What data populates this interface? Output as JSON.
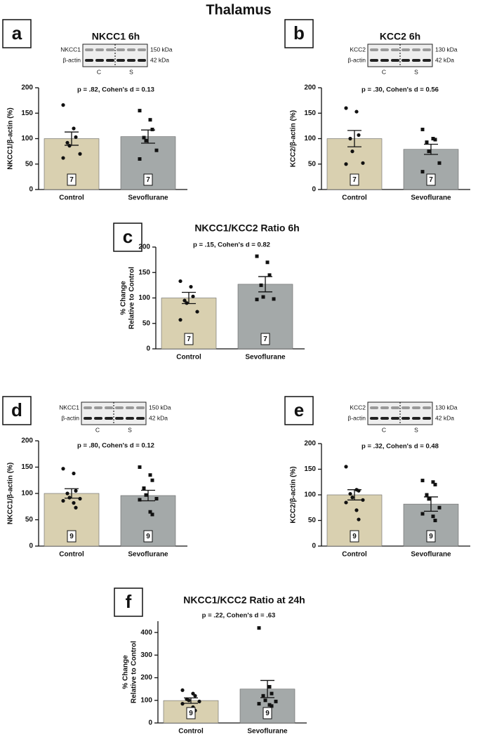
{
  "title": "Thalamus",
  "chart_data": [
    {
      "type": "bar",
      "panel": "a",
      "title": "NKCC1 6h",
      "blot": {
        "labels": [
          "NKCC1",
          "β-actin"
        ],
        "sizes": [
          "150 kDa",
          "42 kDa"
        ],
        "lanes": [
          "C",
          "S"
        ]
      },
      "stats": "p = .82, Cohen's d = 0.13",
      "ylabel": [
        "NKCC1/β-actin (%)"
      ],
      "categories": [
        "Control",
        "Sevoflurane"
      ],
      "colors": [
        "#d9d0b0",
        "#a4a9a9"
      ],
      "values": [
        100,
        104
      ],
      "errors": [
        13,
        13
      ],
      "n_labels": [
        "7",
        "7"
      ],
      "points": [
        [
          166,
          120,
          103,
          92,
          86,
          70,
          62
        ],
        [
          155,
          137,
          118,
          102,
          96,
          77,
          60
        ]
      ],
      "ylim": [
        0,
        200
      ],
      "yticks": [
        0,
        50,
        100,
        150,
        200
      ]
    },
    {
      "type": "bar",
      "panel": "b",
      "title": "KCC2 6h",
      "blot": {
        "labels": [
          "KCC2",
          "β-actin"
        ],
        "sizes": [
          "130 kDa",
          "42 kDa"
        ],
        "lanes": [
          "C",
          "S"
        ]
      },
      "stats": "p = .30, Cohen's d = 0.56",
      "ylabel": [
        "KCC2/β-actin (%)"
      ],
      "categories": [
        "Control",
        "Sevoflurane"
      ],
      "colors": [
        "#d9d0b0",
        "#a4a9a9"
      ],
      "values": [
        100,
        79
      ],
      "errors": [
        16,
        10
      ],
      "n_labels": [
        "7",
        "7"
      ],
      "points": [
        [
          160,
          153,
          107,
          100,
          75,
          52,
          50
        ],
        [
          118,
          100,
          98,
          93,
          75,
          52,
          35
        ]
      ],
      "ylim": [
        0,
        200
      ],
      "yticks": [
        0,
        50,
        100,
        150,
        200
      ]
    },
    {
      "type": "bar",
      "panel": "c",
      "title": "NKCC1/KCC2 Ratio 6h",
      "stats": "p = .15, Cohen's d = 0.82",
      "ylabel": [
        "% Change",
        "Relative to Control"
      ],
      "categories": [
        "Control",
        "Sevoflurane"
      ],
      "colors": [
        "#d9d0b0",
        "#a4a9a9"
      ],
      "values": [
        100,
        127
      ],
      "errors": [
        11,
        15
      ],
      "n_labels": [
        "7",
        "7"
      ],
      "points": [
        [
          133,
          122,
          103,
          95,
          90,
          73,
          57
        ],
        [
          182,
          170,
          145,
          125,
          102,
          98,
          97
        ]
      ],
      "ylim": [
        0,
        200
      ],
      "yticks": [
        0,
        50,
        100,
        150,
        200
      ]
    },
    {
      "type": "bar",
      "panel": "d",
      "title": "NKCC1 24h",
      "blot": {
        "labels": [
          "NKCC1",
          "β-actin"
        ],
        "sizes": [
          "150 kDa",
          "42 kDa"
        ],
        "lanes": [
          "C",
          "S"
        ]
      },
      "stats": "p = .80, Cohen's d = 0.12",
      "ylabel": [
        "NKCC1/β-actin (%)"
      ],
      "categories": [
        "Control",
        "Sevoflurane"
      ],
      "colors": [
        "#d9d0b0",
        "#a4a9a9"
      ],
      "values": [
        100,
        96
      ],
      "errors": [
        9,
        10
      ],
      "n_labels": [
        "9",
        "9"
      ],
      "points": [
        [
          147,
          138,
          105,
          100,
          92,
          90,
          86,
          82,
          73
        ],
        [
          150,
          135,
          125,
          110,
          97,
          90,
          88,
          65,
          60
        ]
      ],
      "ylim": [
        0,
        200
      ],
      "yticks": [
        0,
        50,
        100,
        150,
        200
      ]
    },
    {
      "type": "bar",
      "panel": "e",
      "title": "KCC2 24h",
      "blot": {
        "labels": [
          "KCC2",
          "β-actin"
        ],
        "sizes": [
          "130 kDa",
          "42 kDa"
        ],
        "lanes": [
          "C",
          "S"
        ]
      },
      "stats": "p = .32, Cohen's d = 0.48",
      "ylabel": [
        "KCC2/β-actin (%)"
      ],
      "categories": [
        "Control",
        "Sevoflurane"
      ],
      "colors": [
        "#d9d0b0",
        "#a4a9a9"
      ],
      "values": [
        100,
        82
      ],
      "errors": [
        10,
        14
      ],
      "n_labels": [
        "9",
        "9"
      ],
      "points": [
        [
          155,
          110,
          108,
          102,
          95,
          90,
          85,
          70,
          52
        ],
        [
          128,
          125,
          120,
          100,
          92,
          75,
          63,
          58,
          50
        ]
      ],
      "ylim": [
        0,
        200
      ],
      "yticks": [
        0,
        50,
        100,
        150,
        200
      ]
    },
    {
      "type": "bar",
      "panel": "f",
      "title": "NKCC1/KCC2 Ratio at 24h",
      "stats": "p = .22, Cohen's d = .63",
      "ylabel": [
        "% Change",
        "Relative to Control"
      ],
      "categories": [
        "Control",
        "Sevoflurane"
      ],
      "colors": [
        "#d9d0b0",
        "#a4a9a9"
      ],
      "values": [
        99,
        150
      ],
      "errors": [
        12,
        38
      ],
      "n_labels": [
        "9",
        "9"
      ],
      "points": [
        [
          145,
          130,
          120,
          105,
          100,
          95,
          85,
          70,
          55
        ],
        [
          420,
          160,
          130,
          120,
          100,
          95,
          85,
          80,
          75
        ]
      ],
      "ylim": [
        0,
        450
      ],
      "yticks": [
        0,
        100,
        200,
        300,
        400
      ]
    }
  ]
}
